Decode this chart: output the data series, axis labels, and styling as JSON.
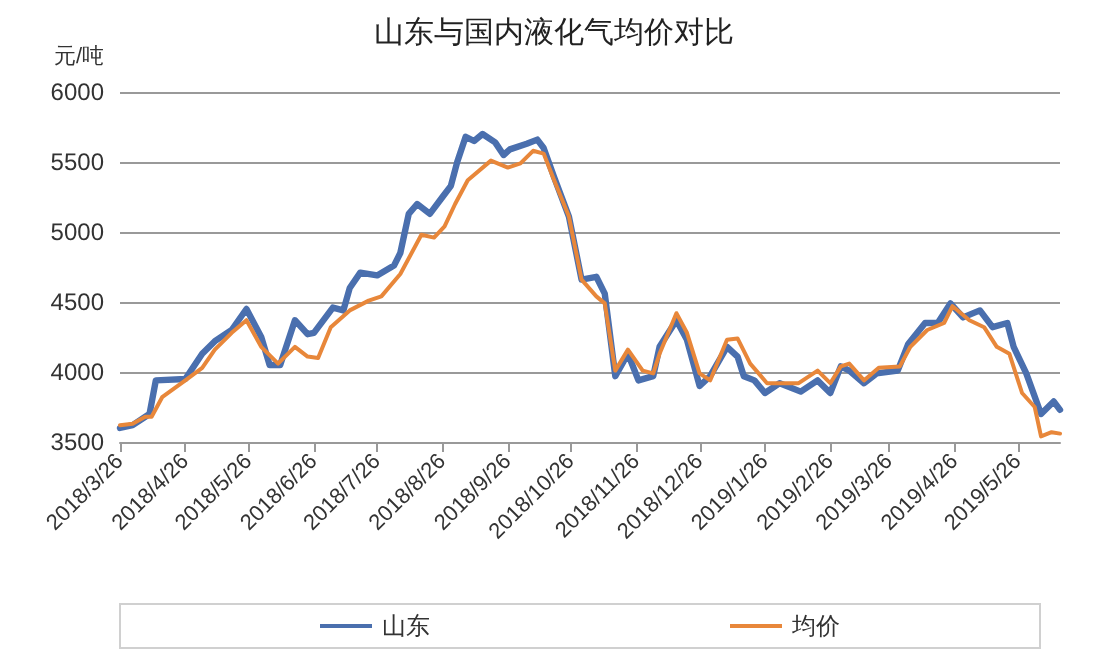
{
  "chart_data": {
    "type": "line",
    "title": "山东与国内液化气均价对比",
    "ylabel": "元/吨",
    "xlim": [
      "2018-03-26",
      "2019-06-15"
    ],
    "xticks": [
      {
        "value": "2018-03-26",
        "label": "2018/3/26"
      },
      {
        "value": "2018-04-26",
        "label": "2018/4/26"
      },
      {
        "value": "2018-05-26",
        "label": "2018/5/26"
      },
      {
        "value": "2018-06-26",
        "label": "2018/6/26"
      },
      {
        "value": "2018-07-26",
        "label": "2018/7/26"
      },
      {
        "value": "2018-08-26",
        "label": "2018/8/26"
      },
      {
        "value": "2018-09-26",
        "label": "2018/9/26"
      },
      {
        "value": "2018-10-26",
        "label": "2018/10/26"
      },
      {
        "value": "2018-11-26",
        "label": "2018/11/26"
      },
      {
        "value": "2018-12-26",
        "label": "2018/12/26"
      },
      {
        "value": "2019-01-26",
        "label": "2019/1/26"
      },
      {
        "value": "2019-02-26",
        "label": "2019/2/26"
      },
      {
        "value": "2019-03-26",
        "label": "2019/3/26"
      },
      {
        "value": "2019-04-26",
        "label": "2019/4/26"
      },
      {
        "value": "2019-05-26",
        "label": "2019/5/26"
      }
    ],
    "ylim": [
      3500,
      6000
    ],
    "yticks": [
      3500,
      4000,
      4500,
      5000,
      5500,
      6000
    ],
    "grid": "y",
    "legend": "bottom",
    "marker": "none",
    "line_style": "solid",
    "series": [
      {
        "name": "山东",
        "color": "#4a6fae",
        "x": [
          "2018-03-26",
          "2018-04-01",
          "2018-04-09",
          "2018-04-12",
          "2018-04-26",
          "2018-05-04",
          "2018-05-10",
          "2018-05-18",
          "2018-05-25",
          "2018-06-01",
          "2018-06-05",
          "2018-06-10",
          "2018-06-17",
          "2018-06-23",
          "2018-06-26",
          "2018-07-05",
          "2018-07-10",
          "2018-07-13",
          "2018-07-18",
          "2018-07-26",
          "2018-08-03",
          "2018-08-06",
          "2018-08-10",
          "2018-08-14",
          "2018-08-20",
          "2018-08-26",
          "2018-08-30",
          "2018-09-02",
          "2018-09-06",
          "2018-09-10",
          "2018-09-14",
          "2018-09-20",
          "2018-09-24",
          "2018-09-27",
          "2018-10-05",
          "2018-10-10",
          "2018-10-13",
          "2018-10-18",
          "2018-10-25",
          "2018-10-31",
          "2018-11-07",
          "2018-11-11",
          "2018-11-16",
          "2018-11-22",
          "2018-11-27",
          "2018-12-04",
          "2018-12-07",
          "2018-12-15",
          "2018-12-20",
          "2018-12-26",
          "2018-12-31",
          "2019-01-08",
          "2019-01-13",
          "2019-01-16",
          "2019-01-21",
          "2019-01-26",
          "2019-02-02",
          "2019-02-12",
          "2019-02-20",
          "2019-02-26",
          "2019-03-03",
          "2019-03-07",
          "2019-03-14",
          "2019-03-20",
          "2019-03-30",
          "2019-04-04",
          "2019-04-12",
          "2019-04-18",
          "2019-04-24",
          "2019-04-30",
          "2019-05-08",
          "2019-05-14",
          "2019-05-21",
          "2019-05-24",
          "2019-05-30",
          "2019-06-06",
          "2019-06-12",
          "2019-06-15"
        ],
        "values": [
          3600,
          3620,
          3700,
          3940,
          3950,
          4130,
          4220,
          4300,
          4450,
          4250,
          4050,
          4050,
          4370,
          4270,
          4280,
          4460,
          4440,
          4600,
          4710,
          4690,
          4760,
          4850,
          5130,
          5200,
          5130,
          5250,
          5330,
          5500,
          5680,
          5650,
          5700,
          5640,
          5550,
          5590,
          5630,
          5660,
          5600,
          5390,
          5110,
          4660,
          4680,
          4560,
          3970,
          4130,
          3940,
          3970,
          4180,
          4370,
          4230,
          3900,
          3970,
          4180,
          4110,
          3970,
          3940,
          3850,
          3920,
          3860,
          3940,
          3850,
          4040,
          4010,
          3920,
          3990,
          4010,
          4200,
          4350,
          4350,
          4490,
          4390,
          4440,
          4320,
          4350,
          4180,
          3990,
          3700,
          3790,
          3730
        ]
      },
      {
        "name": "均价",
        "color": "#e8873a",
        "x": [
          "2018-03-26",
          "2018-04-01",
          "2018-04-07",
          "2018-04-10",
          "2018-04-15",
          "2018-04-26",
          "2018-05-04",
          "2018-05-10",
          "2018-05-18",
          "2018-05-25",
          "2018-06-01",
          "2018-06-09",
          "2018-06-17",
          "2018-06-23",
          "2018-06-28",
          "2018-07-04",
          "2018-07-13",
          "2018-07-22",
          "2018-07-28",
          "2018-08-06",
          "2018-08-16",
          "2018-08-22",
          "2018-08-27",
          "2018-09-01",
          "2018-09-07",
          "2018-09-18",
          "2018-09-26",
          "2018-10-02",
          "2018-10-08",
          "2018-10-13",
          "2018-10-18",
          "2018-10-25",
          "2018-10-31",
          "2018-11-07",
          "2018-11-11",
          "2018-11-16",
          "2018-11-22",
          "2018-11-29",
          "2018-12-04",
          "2018-12-07",
          "2018-12-15",
          "2018-12-20",
          "2018-12-26",
          "2018-12-31",
          "2019-01-08",
          "2019-01-13",
          "2019-01-19",
          "2019-01-27",
          "2019-02-11",
          "2019-02-20",
          "2019-02-26",
          "2019-03-03",
          "2019-03-07",
          "2019-03-14",
          "2019-03-21",
          "2019-03-31",
          "2019-04-05",
          "2019-04-13",
          "2019-04-21",
          "2019-04-25",
          "2019-05-03",
          "2019-05-10",
          "2019-05-16",
          "2019-05-22",
          "2019-05-28",
          "2019-06-03",
          "2019-06-06",
          "2019-06-11",
          "2019-06-15"
        ],
        "values": [
          3620,
          3630,
          3680,
          3680,
          3820,
          3940,
          4030,
          4160,
          4280,
          4370,
          4180,
          4060,
          4180,
          4110,
          4100,
          4320,
          4440,
          4510,
          4540,
          4700,
          4980,
          4960,
          5040,
          5200,
          5370,
          5510,
          5460,
          5490,
          5580,
          5560,
          5370,
          5110,
          4660,
          4540,
          4490,
          4010,
          4160,
          4010,
          3990,
          4130,
          4420,
          4280,
          3990,
          3940,
          4230,
          4240,
          4060,
          3920,
          3920,
          4010,
          3920,
          4040,
          4060,
          3940,
          4030,
          4040,
          4180,
          4300,
          4350,
          4470,
          4370,
          4320,
          4180,
          4130,
          3850,
          3750,
          3540,
          3570,
          3560
        ]
      }
    ]
  }
}
